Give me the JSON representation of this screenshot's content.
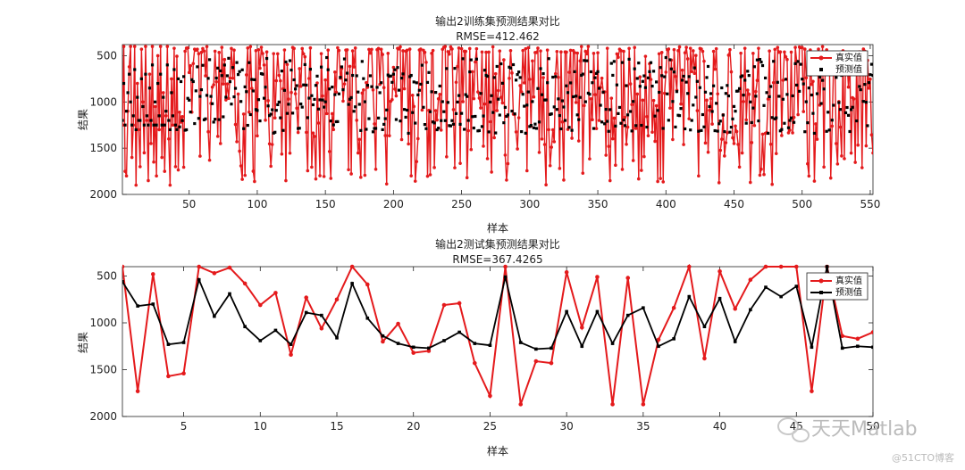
{
  "colors": {
    "real": "#e41a1c",
    "pred": "#000000",
    "axis": "#222222",
    "watermark": "#bbbbbb"
  },
  "watermark": {
    "brand": "天天Matlab",
    "site": "@51CTO博客"
  },
  "chart_data": [
    {
      "type": "line",
      "title": "输出2训练集预测结果对比",
      "subtitle": "RMSE=412.462",
      "xlabel": "样本",
      "ylabel": "结果",
      "xlim": [
        1,
        552
      ],
      "ylim": [
        380,
        2000
      ],
      "y_reversed": true,
      "xticks": [
        50,
        100,
        150,
        200,
        250,
        300,
        350,
        400,
        450,
        500,
        550
      ],
      "yticks": [
        500,
        1000,
        1500,
        2000
      ],
      "legend": {
        "position": "top-right",
        "entries": [
          "真实值",
          "预测值"
        ]
      },
      "n_points": 552,
      "series": [
        {
          "name": "真实值",
          "style": "red-line-dots",
          "values_sample_first_40": [
            1250,
            400,
            1750,
            1800,
            1100,
            620,
            400,
            1600,
            1250,
            400,
            1900,
            800,
            1300,
            1700,
            430,
            1000,
            1550,
            400,
            1200,
            1850,
            700,
            1450,
            400,
            1650,
            1050,
            1800,
            500,
            1300,
            400,
            1600,
            900,
            1750,
            1150,
            400,
            1400,
            1900,
            750,
            1250,
            420,
            1700
          ]
        },
        {
          "name": "预测值",
          "style": "black-squares",
          "values_sample_first_40": [
            1200,
            800,
            1250,
            1100,
            900,
            700,
            1000,
            1250,
            1150,
            650,
            1300,
            950,
            1200,
            1200,
            750,
            1050,
            1250,
            700,
            1150,
            1250,
            850,
            1200,
            600,
            1250,
            1000,
            1250,
            800,
            1150,
            700,
            1250,
            950,
            1250,
            1100,
            600,
            1200,
            1300,
            900,
            1150,
            650,
            1250
          ]
        }
      ]
    },
    {
      "type": "line",
      "title": "输出2测试集预测结果对比",
      "subtitle": "RMSE=367.4265",
      "xlabel": "样本",
      "ylabel": "结果",
      "xlim": [
        1,
        50
      ],
      "ylim": [
        400,
        2000
      ],
      "y_reversed": true,
      "xticks": [
        5,
        10,
        15,
        20,
        25,
        30,
        35,
        40,
        45,
        50
      ],
      "yticks": [
        500,
        1000,
        1500,
        2000
      ],
      "legend": {
        "position": "top-right",
        "entries": [
          "真实值",
          "预测值"
        ]
      },
      "x": [
        1,
        2,
        3,
        4,
        5,
        6,
        7,
        8,
        9,
        10,
        11,
        12,
        13,
        14,
        15,
        16,
        17,
        18,
        19,
        20,
        21,
        22,
        23,
        24,
        25,
        26,
        27,
        28,
        29,
        30,
        31,
        32,
        33,
        34,
        35,
        36,
        37,
        38,
        39,
        40,
        41,
        42,
        43,
        44,
        45,
        46,
        47,
        48,
        49,
        50
      ],
      "series": [
        {
          "name": "真实值",
          "values": [
            400,
            1730,
            480,
            1570,
            1540,
            400,
            470,
            410,
            580,
            810,
            680,
            1340,
            730,
            1060,
            750,
            400,
            590,
            1200,
            1010,
            1320,
            1300,
            810,
            790,
            1430,
            1780,
            400,
            1870,
            1410,
            1430,
            460,
            1050,
            510,
            1870,
            520,
            1870,
            1180,
            840,
            400,
            1380,
            450,
            850,
            540,
            400,
            400,
            400,
            1730,
            400,
            1140,
            1170,
            1100
          ]
        },
        {
          "name": "预测值",
          "values": [
            560,
            820,
            800,
            1230,
            1210,
            540,
            930,
            690,
            1040,
            1190,
            1080,
            1230,
            890,
            920,
            1160,
            580,
            950,
            1140,
            1220,
            1260,
            1270,
            1190,
            1100,
            1220,
            1240,
            510,
            1210,
            1280,
            1270,
            880,
            1250,
            880,
            1220,
            920,
            840,
            1250,
            1170,
            720,
            1040,
            740,
            1200,
            860,
            620,
            720,
            610,
            1260,
            400,
            1270,
            1250,
            1260
          ]
        }
      ]
    }
  ]
}
